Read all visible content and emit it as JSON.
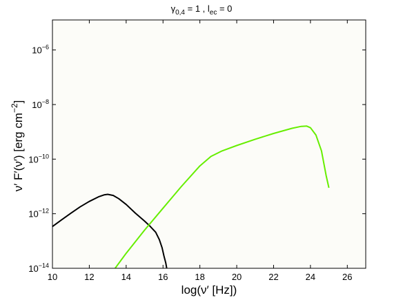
{
  "chart_data": {
    "type": "line",
    "title_parts": {
      "gamma_symbol": "γ",
      "gamma_sub": "0,4",
      "gamma_rest": " = 1 , l",
      "l_sub": "ec",
      "l_rest": " = 0"
    },
    "xlabel": "log(ν′ [Hz])",
    "ylabel_main": "ν′ F′(ν′) [erg cm",
    "ylabel_sup": "−2",
    "ylabel_end": "]",
    "xlim": [
      10,
      27
    ],
    "ylim_log10": [
      -14,
      -4.9
    ],
    "x_scale": "linear",
    "y_scale": "log",
    "grid": false,
    "plot_background": "#fcfcf8",
    "x_ticks": [
      {
        "value": 10,
        "label": "10"
      },
      {
        "value": 12,
        "label": "12"
      },
      {
        "value": 14,
        "label": "14"
      },
      {
        "value": 16,
        "label": "16"
      },
      {
        "value": 18,
        "label": "18"
      },
      {
        "value": 20,
        "label": "20"
      },
      {
        "value": 22,
        "label": "22"
      },
      {
        "value": 24,
        "label": "24"
      },
      {
        "value": 26,
        "label": "26"
      }
    ],
    "y_ticks": [
      {
        "exp": -14,
        "base": "10",
        "sup": "−14"
      },
      {
        "exp": -12,
        "base": "10",
        "sup": "−12"
      },
      {
        "exp": -10,
        "base": "10",
        "sup": "−10"
      },
      {
        "exp": -8,
        "base": "10",
        "sup": "−8"
      },
      {
        "exp": -6,
        "base": "10",
        "sup": "−6"
      }
    ],
    "series": [
      {
        "color": "#000000",
        "points": [
          [
            10.0,
            -12.47
          ],
          [
            10.5,
            -12.22
          ],
          [
            11.0,
            -11.98
          ],
          [
            11.5,
            -11.75
          ],
          [
            12.0,
            -11.55
          ],
          [
            12.5,
            -11.38
          ],
          [
            12.8,
            -11.31
          ],
          [
            13.0,
            -11.29
          ],
          [
            13.3,
            -11.33
          ],
          [
            13.6,
            -11.45
          ],
          [
            14.0,
            -11.66
          ],
          [
            14.5,
            -11.98
          ],
          [
            15.0,
            -12.27
          ],
          [
            15.3,
            -12.46
          ],
          [
            15.6,
            -12.68
          ],
          [
            15.8,
            -12.95
          ],
          [
            15.95,
            -13.25
          ],
          [
            16.05,
            -13.55
          ],
          [
            16.15,
            -13.8
          ],
          [
            16.2,
            -14.0
          ]
        ]
      },
      {
        "color": "#66ee00",
        "points": [
          [
            13.4,
            -14.0
          ],
          [
            14.0,
            -13.45
          ],
          [
            15.0,
            -12.6
          ],
          [
            16.0,
            -11.8
          ],
          [
            17.0,
            -11.0
          ],
          [
            18.0,
            -10.25
          ],
          [
            18.6,
            -9.9
          ],
          [
            19.2,
            -9.7
          ],
          [
            20.0,
            -9.5
          ],
          [
            21.0,
            -9.27
          ],
          [
            22.0,
            -9.06
          ],
          [
            23.0,
            -8.87
          ],
          [
            23.5,
            -8.8
          ],
          [
            23.8,
            -8.79
          ],
          [
            24.0,
            -8.85
          ],
          [
            24.3,
            -9.12
          ],
          [
            24.6,
            -9.7
          ],
          [
            24.85,
            -10.6
          ],
          [
            25.0,
            -11.05
          ]
        ]
      }
    ]
  }
}
